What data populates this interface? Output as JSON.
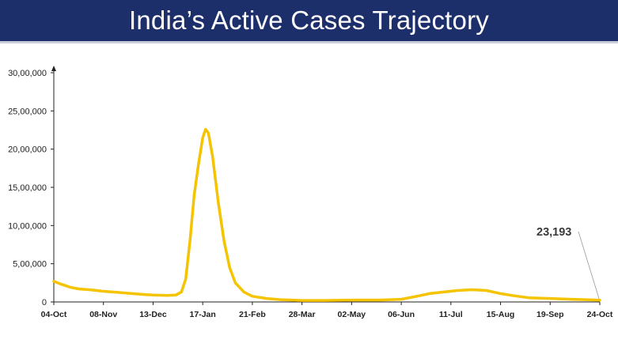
{
  "title": "India’s Active Cases Trajectory",
  "chart_data": {
    "type": "line",
    "title": "India’s Active Cases Trajectory",
    "xlabel": "",
    "ylabel": "",
    "ylim": [
      0,
      3000000
    ],
    "grid": false,
    "legend": "none",
    "line_color": "#f5c400",
    "y_ticks": [
      {
        "value": 0,
        "label": "0"
      },
      {
        "value": 500000,
        "label": "5,00,000"
      },
      {
        "value": 1000000,
        "label": "10,00,000"
      },
      {
        "value": 1500000,
        "label": "15,00,000"
      },
      {
        "value": 2000000,
        "label": "20,00,000"
      },
      {
        "value": 2500000,
        "label": "25,00,000"
      },
      {
        "value": 3000000,
        "label": "30,00,000"
      }
    ],
    "x_ticks": [
      "04-Oct",
      "08-Nov",
      "13-Dec",
      "17-Jan",
      "21-Feb",
      "28-Mar",
      "02-May",
      "06-Jun",
      "11-Jul",
      "15-Aug",
      "19-Sep",
      "24-Oct"
    ],
    "x_tick_days": [
      0,
      35,
      70,
      105,
      140,
      175,
      210,
      245,
      280,
      315,
      350,
      385
    ],
    "series": [
      {
        "points": [
          [
            0,
            270000
          ],
          [
            4,
            240000
          ],
          [
            8,
            215000
          ],
          [
            12,
            190000
          ],
          [
            18,
            170000
          ],
          [
            25,
            160000
          ],
          [
            35,
            140000
          ],
          [
            45,
            125000
          ],
          [
            55,
            110000
          ],
          [
            65,
            95000
          ],
          [
            70,
            90000
          ],
          [
            80,
            85000
          ],
          [
            86,
            90000
          ],
          [
            90,
            130000
          ],
          [
            93,
            300000
          ],
          [
            96,
            800000
          ],
          [
            99,
            1400000
          ],
          [
            102,
            1800000
          ],
          [
            105,
            2150000
          ],
          [
            107,
            2260000
          ],
          [
            109,
            2210000
          ],
          [
            112,
            1900000
          ],
          [
            116,
            1300000
          ],
          [
            120,
            800000
          ],
          [
            124,
            450000
          ],
          [
            128,
            250000
          ],
          [
            134,
            130000
          ],
          [
            140,
            75000
          ],
          [
            150,
            45000
          ],
          [
            160,
            30000
          ],
          [
            175,
            20000
          ],
          [
            190,
            20000
          ],
          [
            210,
            25000
          ],
          [
            230,
            25000
          ],
          [
            245,
            35000
          ],
          [
            255,
            70000
          ],
          [
            265,
            110000
          ],
          [
            275,
            130000
          ],
          [
            285,
            150000
          ],
          [
            295,
            160000
          ],
          [
            305,
            150000
          ],
          [
            315,
            110000
          ],
          [
            325,
            80000
          ],
          [
            335,
            55000
          ],
          [
            350,
            45000
          ],
          [
            365,
            35000
          ],
          [
            375,
            30000
          ],
          [
            385,
            23193
          ]
        ]
      }
    ],
    "annotations": [
      {
        "text": "23,193",
        "x": 385,
        "y": 23193
      }
    ]
  }
}
